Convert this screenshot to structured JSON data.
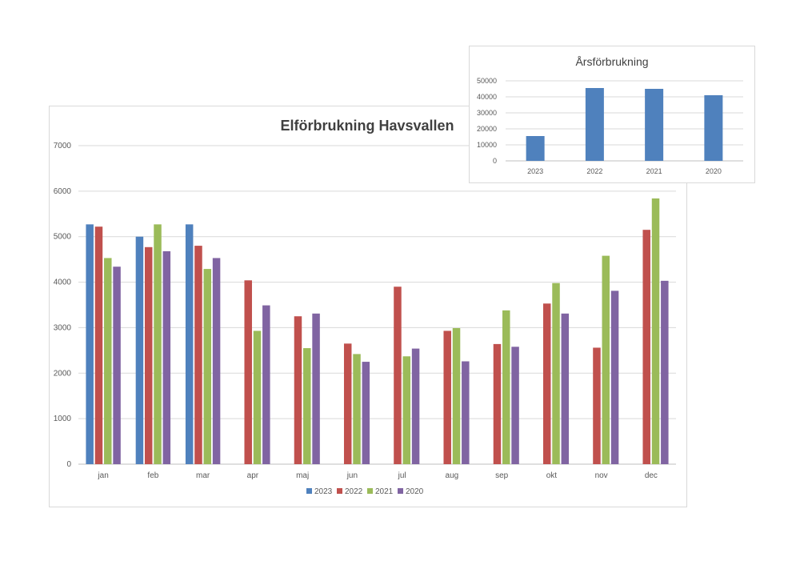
{
  "chart_data": [
    {
      "type": "bar",
      "title": "Elförbrukning Havsvallen",
      "categories": [
        "jan",
        "feb",
        "mar",
        "apr",
        "maj",
        "jun",
        "jul",
        "aug",
        "sep",
        "okt",
        "nov",
        "dec"
      ],
      "series": [
        {
          "name": "2023",
          "color": "#4f81bd",
          "values": [
            5270,
            5000,
            5270,
            null,
            null,
            null,
            null,
            null,
            null,
            null,
            null,
            null
          ]
        },
        {
          "name": "2022",
          "color": "#c0504d",
          "values": [
            5220,
            4770,
            4800,
            4040,
            3250,
            2650,
            3900,
            2930,
            2640,
            3530,
            2560,
            5150
          ]
        },
        {
          "name": "2021",
          "color": "#9bbb59",
          "values": [
            4530,
            5270,
            4290,
            2930,
            2550,
            2420,
            2370,
            2990,
            3380,
            3980,
            4580,
            5840
          ]
        },
        {
          "name": "2020",
          "color": "#8064a2",
          "values": [
            4340,
            4680,
            4530,
            3490,
            3310,
            2250,
            2540,
            2260,
            2580,
            3310,
            3810,
            4030
          ]
        }
      ],
      "ylim": [
        0,
        7000
      ],
      "yticks": [
        "0",
        "1000",
        "2000",
        "3000",
        "4000",
        "5000",
        "6000",
        "7000"
      ],
      "grid": true,
      "legend_position": "bottom"
    },
    {
      "type": "bar",
      "title": "Årsförbrukning",
      "categories": [
        "2023",
        "2022",
        "2021",
        "2020"
      ],
      "values": [
        15500,
        45500,
        45000,
        41000
      ],
      "color": "#4f81bd",
      "ylim": [
        0,
        50000
      ],
      "yticks": [
        "0",
        "10000",
        "20000",
        "30000",
        "40000",
        "50000"
      ],
      "grid": true
    }
  ]
}
